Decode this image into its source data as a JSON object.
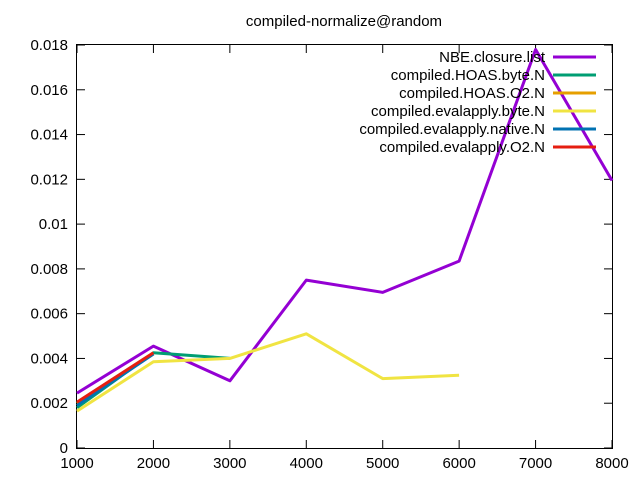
{
  "chart_data": {
    "type": "line",
    "title": "compiled-normalize@random",
    "xlabel": "",
    "ylabel": "",
    "xlim": [
      1000,
      8000
    ],
    "ylim": [
      0,
      0.018
    ],
    "x_ticks": [
      1000,
      2000,
      3000,
      4000,
      5000,
      6000,
      7000,
      8000
    ],
    "x_tick_labels": [
      "1000",
      "2000",
      "3000",
      "4000",
      "5000",
      "6000",
      "7000",
      "8000"
    ],
    "y_ticks": [
      0,
      0.002,
      0.004,
      0.006,
      0.008,
      0.01,
      0.012,
      0.014,
      0.016,
      0.018
    ],
    "y_tick_labels": [
      "0",
      "0.002",
      "0.004",
      "0.006",
      "0.008",
      "0.01",
      "0.012",
      "0.014",
      "0.016",
      "0.018"
    ],
    "grid": false,
    "legend_position": "top-right",
    "series": [
      {
        "name": "NBE.closure.list",
        "color": "#9400d3",
        "x": [
          1000,
          2000,
          3000,
          4000,
          5000,
          6000,
          7000,
          8000
        ],
        "y": [
          0.00245,
          0.00455,
          0.003,
          0.0075,
          0.00695,
          0.00835,
          0.0178,
          0.01195
        ]
      },
      {
        "name": "compiled.HOAS.byte.N",
        "color": "#009e73",
        "x": [
          1000,
          2000,
          3000
        ],
        "y": [
          0.0018,
          0.00425,
          0.004
        ]
      },
      {
        "name": "compiled.HOAS.O2.N",
        "color": "#e69f00",
        "x": [
          1000,
          2000
        ],
        "y": [
          0.002,
          0.0042
        ]
      },
      {
        "name": "compiled.evalapply.byte.N",
        "color": "#f0e442",
        "x": [
          1000,
          2000,
          3000,
          4000,
          5000,
          6000
        ],
        "y": [
          0.00165,
          0.00385,
          0.004,
          0.0051,
          0.0031,
          0.00325
        ]
      },
      {
        "name": "compiled.evalapply.native.N",
        "color": "#0072b2",
        "x": [
          1000,
          2000
        ],
        "y": [
          0.0019,
          0.0042
        ]
      },
      {
        "name": "compiled.evalapply.O2.N",
        "color": "#e51e10",
        "x": [
          1000,
          2000
        ],
        "y": [
          0.00205,
          0.00425
        ]
      }
    ]
  }
}
